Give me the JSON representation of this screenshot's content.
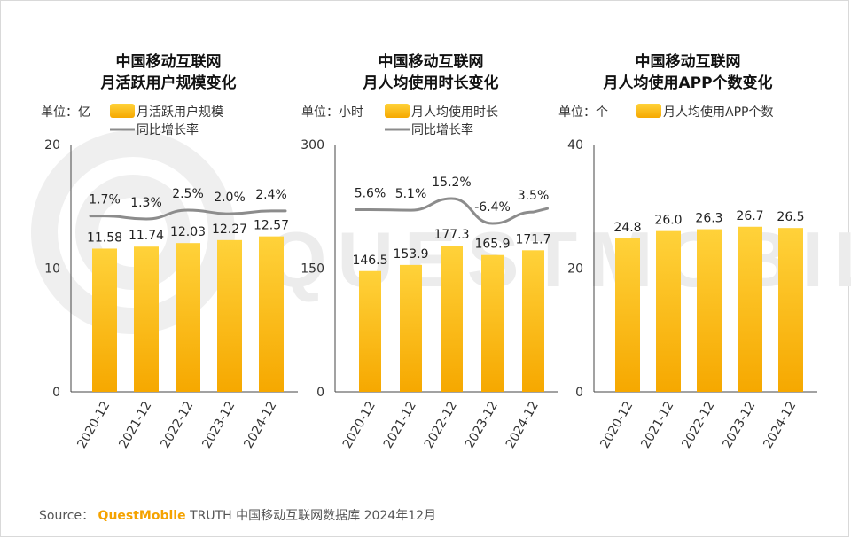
{
  "colors": {
    "bar": "#f8b400",
    "bar_light": "#ffd23a",
    "line": "#8c8c8c",
    "axis": "#333333",
    "watermark": "#eeeeee"
  },
  "watermark": {
    "text": "QUESTMOBILE"
  },
  "source": {
    "label": "Source：",
    "brand": "QuestMobile",
    "rest": "TRUTH 中国移动互联网数据库 2024年12月"
  },
  "chart_data": [
    {
      "type": "bar",
      "title_lines": [
        "中国移动互联网",
        "月活跃用户规模变化"
      ],
      "unit_label": "单位：亿",
      "legend": {
        "bar": "月活跃用户规模",
        "line": "同比增长率"
      },
      "categories": [
        "2020-12",
        "2021-12",
        "2022-12",
        "2023-12",
        "2024-12"
      ],
      "values": [
        11.58,
        11.74,
        12.03,
        12.27,
        12.57
      ],
      "value_labels": [
        "11.58",
        "11.74",
        "12.03",
        "12.27",
        "12.57"
      ],
      "ylim": [
        0,
        20
      ],
      "yticks": [
        "0",
        "10",
        "20"
      ],
      "line_series": {
        "name": "同比增长率",
        "values": [
          1.7,
          1.3,
          2.5,
          2.0,
          2.4
        ],
        "labels": [
          "1.7%",
          "1.3%",
          "2.5%",
          "2.0%",
          "2.4%"
        ]
      }
    },
    {
      "type": "bar",
      "title_lines": [
        "中国移动互联网",
        "月人均使用时长变化"
      ],
      "unit_label": "单位：小时",
      "legend": {
        "bar": "月人均使用时长",
        "line": "同比增长率"
      },
      "categories": [
        "2020-12",
        "2021-12",
        "2022-12",
        "2023-12",
        "2024-12"
      ],
      "values": [
        146.5,
        153.9,
        177.3,
        165.9,
        171.7
      ],
      "value_labels": [
        "146.5",
        "153.9",
        "177.3",
        "165.9",
        "171.7"
      ],
      "ylim": [
        0,
        300
      ],
      "yticks": [
        "0",
        "150",
        "300"
      ],
      "line_series": {
        "name": "同比增长率",
        "values": [
          5.6,
          5.1,
          15.2,
          -6.4,
          3.5
        ],
        "labels": [
          "5.6%",
          "5.1%",
          "15.2%",
          "-6.4%",
          "3.5%"
        ]
      }
    },
    {
      "type": "bar",
      "title_lines": [
        "中国移动互联网",
        "月人均使用APP个数变化"
      ],
      "unit_label": "单位：个",
      "legend": {
        "bar": "月人均使用APP个数"
      },
      "categories": [
        "2020-12",
        "2021-12",
        "2022-12",
        "2023-12",
        "2024-12"
      ],
      "values": [
        24.8,
        26.0,
        26.3,
        26.7,
        26.5
      ],
      "value_labels": [
        "24.8",
        "26.0",
        "26.3",
        "26.7",
        "26.5"
      ],
      "ylim": [
        0,
        40
      ],
      "yticks": [
        "0",
        "20",
        "40"
      ]
    }
  ]
}
